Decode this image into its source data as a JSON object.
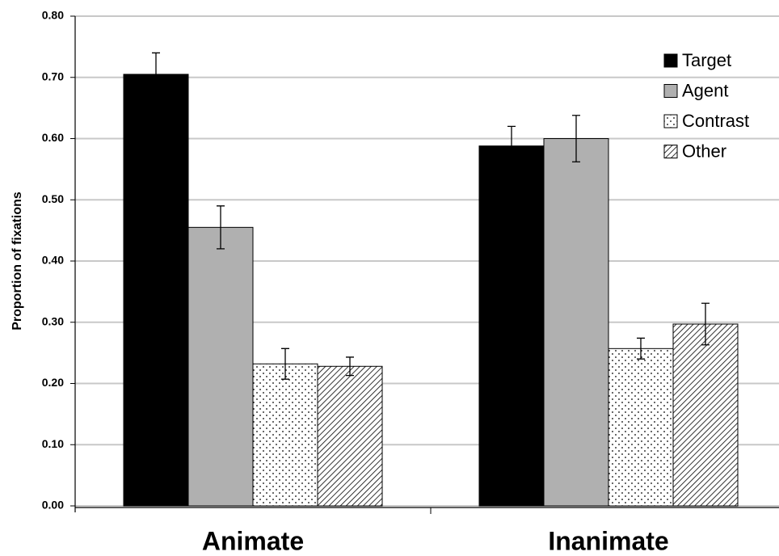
{
  "chart_data": {
    "type": "bar",
    "y_label": "Proportion of fixations",
    "categories": [
      "Animate",
      "Inanimate"
    ],
    "series": [
      {
        "name": "Target",
        "color": "#000000",
        "pattern": "solid",
        "values": [
          0.705,
          0.588
        ],
        "errors": [
          0.035,
          0.032
        ]
      },
      {
        "name": "Agent",
        "color": "#b0b0b0",
        "pattern": "solid",
        "values": [
          0.455,
          0.6
        ],
        "errors": [
          0.035,
          0.038
        ]
      },
      {
        "name": "Contrast",
        "color": "#ffffff",
        "pattern": "dots",
        "values": [
          0.232,
          0.257
        ],
        "errors": [
          0.025,
          0.017
        ]
      },
      {
        "name": "Other",
        "color": "#ffffff",
        "pattern": "hatch",
        "values": [
          0.228,
          0.297
        ],
        "errors": [
          0.015,
          0.034
        ]
      }
    ],
    "ylim": [
      0,
      0.8
    ],
    "yticks": [
      {
        "value": 0,
        "label": "0.00"
      },
      {
        "value": 0.1,
        "label": "0.10"
      },
      {
        "value": 0.2,
        "label": "0.20"
      },
      {
        "value": 0.3,
        "label": "0.30"
      },
      {
        "value": 0.4,
        "label": "0.40"
      },
      {
        "value": 0.5,
        "label": "0.50"
      },
      {
        "value": 0.6,
        "label": "0.60"
      },
      {
        "value": 0.7,
        "label": "0.70"
      },
      {
        "value": 0.8,
        "label": "0.80"
      }
    ],
    "grid": true,
    "legend": "upper-right"
  }
}
